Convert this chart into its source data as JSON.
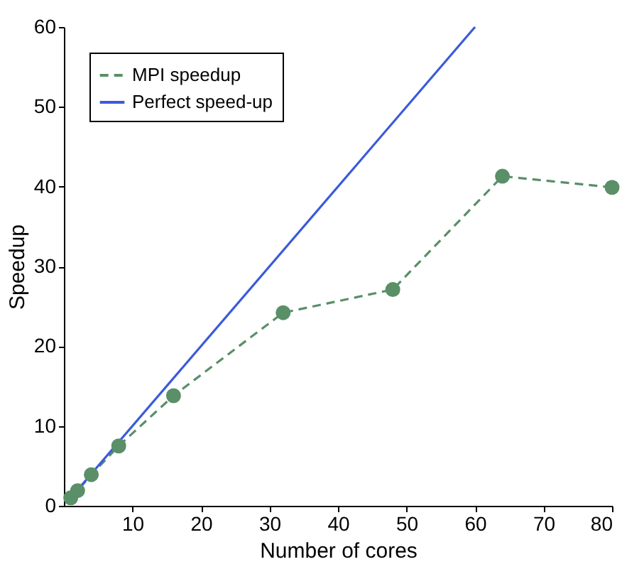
{
  "chart_data": {
    "type": "line",
    "xlabel": "Number of cores",
    "ylabel": "Speedup",
    "xlim": [
      0,
      80
    ],
    "xticks": [
      10,
      20,
      30,
      40,
      50,
      60,
      70,
      80
    ],
    "ylim": [
      0,
      60
    ],
    "yticks": [
      0,
      10,
      20,
      30,
      40,
      50,
      60
    ],
    "grid": false,
    "legend": "top left",
    "series": [
      {
        "name": "MPI speedup",
        "color": "#5a8f68",
        "x": [
          1,
          2,
          4,
          8,
          16,
          32,
          48,
          64,
          80
        ],
        "values": [
          1,
          1.9,
          3.9,
          7.5,
          13.8,
          24.2,
          27.1,
          41.3,
          39.9
        ],
        "marker": "circle",
        "line_style": "dashed"
      },
      {
        "name": "Perfect speed-up",
        "color": "#3b5bd9",
        "x": [
          1,
          60
        ],
        "values": [
          1,
          60
        ],
        "marker": "none",
        "line_style": "solid"
      }
    ]
  }
}
